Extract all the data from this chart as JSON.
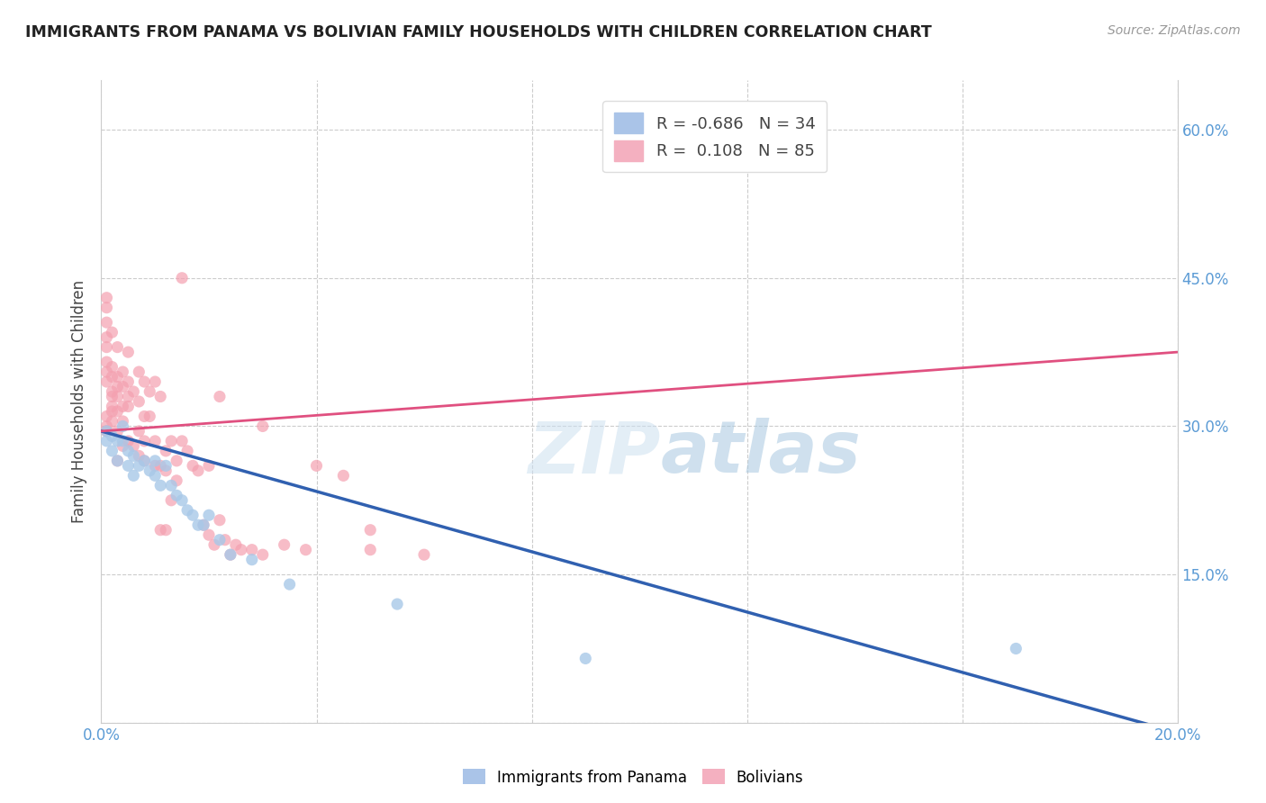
{
  "title": "IMMIGRANTS FROM PANAMA VS BOLIVIAN FAMILY HOUSEHOLDS WITH CHILDREN CORRELATION CHART",
  "source": "Source: ZipAtlas.com",
  "ylabel": "Family Households with Children",
  "xlim": [
    0.0,
    0.2
  ],
  "ylim": [
    0.0,
    0.65
  ],
  "x_ticks": [
    0.0,
    0.04,
    0.08,
    0.12,
    0.16,
    0.2
  ],
  "x_tick_labels": [
    "0.0%",
    "",
    "",
    "",
    "",
    "20.0%"
  ],
  "y_ticks_left": [
    0.0,
    0.15,
    0.3,
    0.45,
    0.6
  ],
  "y_ticks_right": [
    0.15,
    0.3,
    0.45,
    0.6
  ],
  "y_tick_labels_right": [
    "15.0%",
    "30.0%",
    "45.0%",
    "60.0%"
  ],
  "legend_labels_bottom": [
    "Immigrants from Panama",
    "Bolivians"
  ],
  "color_panama": "#a8c8e8",
  "color_bolivia": "#f4a0b0",
  "line_color_panama": "#3060b0",
  "line_color_bolivia": "#e05080",
  "panama_trend": [
    0.0,
    0.2,
    0.295,
    -0.01
  ],
  "bolivia_trend": [
    0.0,
    0.2,
    0.295,
    0.375
  ],
  "panama_scatter": [
    [
      0.001,
      0.295
    ],
    [
      0.001,
      0.285
    ],
    [
      0.002,
      0.29
    ],
    [
      0.002,
      0.275
    ],
    [
      0.003,
      0.285
    ],
    [
      0.003,
      0.265
    ],
    [
      0.004,
      0.3
    ],
    [
      0.004,
      0.285
    ],
    [
      0.005,
      0.275
    ],
    [
      0.005,
      0.26
    ],
    [
      0.006,
      0.27
    ],
    [
      0.006,
      0.25
    ],
    [
      0.007,
      0.26
    ],
    [
      0.008,
      0.265
    ],
    [
      0.009,
      0.255
    ],
    [
      0.01,
      0.265
    ],
    [
      0.01,
      0.25
    ],
    [
      0.011,
      0.24
    ],
    [
      0.012,
      0.26
    ],
    [
      0.013,
      0.24
    ],
    [
      0.014,
      0.23
    ],
    [
      0.015,
      0.225
    ],
    [
      0.016,
      0.215
    ],
    [
      0.017,
      0.21
    ],
    [
      0.018,
      0.2
    ],
    [
      0.019,
      0.2
    ],
    [
      0.02,
      0.21
    ],
    [
      0.022,
      0.185
    ],
    [
      0.024,
      0.17
    ],
    [
      0.028,
      0.165
    ],
    [
      0.035,
      0.14
    ],
    [
      0.055,
      0.12
    ],
    [
      0.09,
      0.065
    ],
    [
      0.17,
      0.075
    ]
  ],
  "bolivia_scatter": [
    [
      0.001,
      0.3
    ],
    [
      0.001,
      0.295
    ],
    [
      0.001,
      0.31
    ],
    [
      0.001,
      0.295
    ],
    [
      0.001,
      0.345
    ],
    [
      0.001,
      0.355
    ],
    [
      0.001,
      0.365
    ],
    [
      0.001,
      0.38
    ],
    [
      0.001,
      0.39
    ],
    [
      0.001,
      0.405
    ],
    [
      0.001,
      0.42
    ],
    [
      0.001,
      0.43
    ],
    [
      0.002,
      0.305
    ],
    [
      0.002,
      0.315
    ],
    [
      0.002,
      0.33
    ],
    [
      0.002,
      0.35
    ],
    [
      0.002,
      0.36
    ],
    [
      0.002,
      0.32
    ],
    [
      0.002,
      0.395
    ],
    [
      0.002,
      0.335
    ],
    [
      0.003,
      0.315
    ],
    [
      0.003,
      0.33
    ],
    [
      0.003,
      0.35
    ],
    [
      0.003,
      0.38
    ],
    [
      0.003,
      0.295
    ],
    [
      0.003,
      0.265
    ],
    [
      0.003,
      0.34
    ],
    [
      0.004,
      0.34
    ],
    [
      0.004,
      0.355
    ],
    [
      0.004,
      0.28
    ],
    [
      0.004,
      0.305
    ],
    [
      0.004,
      0.32
    ],
    [
      0.005,
      0.32
    ],
    [
      0.005,
      0.345
    ],
    [
      0.005,
      0.285
    ],
    [
      0.005,
      0.375
    ],
    [
      0.005,
      0.33
    ],
    [
      0.006,
      0.335
    ],
    [
      0.006,
      0.28
    ],
    [
      0.007,
      0.355
    ],
    [
      0.007,
      0.325
    ],
    [
      0.007,
      0.295
    ],
    [
      0.007,
      0.27
    ],
    [
      0.008,
      0.345
    ],
    [
      0.008,
      0.31
    ],
    [
      0.008,
      0.285
    ],
    [
      0.008,
      0.265
    ],
    [
      0.009,
      0.335
    ],
    [
      0.009,
      0.31
    ],
    [
      0.01,
      0.345
    ],
    [
      0.01,
      0.285
    ],
    [
      0.01,
      0.26
    ],
    [
      0.011,
      0.33
    ],
    [
      0.011,
      0.26
    ],
    [
      0.011,
      0.195
    ],
    [
      0.012,
      0.275
    ],
    [
      0.012,
      0.255
    ],
    [
      0.012,
      0.195
    ],
    [
      0.013,
      0.285
    ],
    [
      0.013,
      0.225
    ],
    [
      0.014,
      0.265
    ],
    [
      0.014,
      0.245
    ],
    [
      0.015,
      0.45
    ],
    [
      0.015,
      0.285
    ],
    [
      0.016,
      0.275
    ],
    [
      0.017,
      0.26
    ],
    [
      0.018,
      0.255
    ],
    [
      0.019,
      0.2
    ],
    [
      0.02,
      0.26
    ],
    [
      0.02,
      0.19
    ],
    [
      0.021,
      0.18
    ],
    [
      0.022,
      0.33
    ],
    [
      0.022,
      0.205
    ],
    [
      0.023,
      0.185
    ],
    [
      0.024,
      0.17
    ],
    [
      0.025,
      0.18
    ],
    [
      0.026,
      0.175
    ],
    [
      0.028,
      0.175
    ],
    [
      0.03,
      0.3
    ],
    [
      0.03,
      0.17
    ],
    [
      0.034,
      0.18
    ],
    [
      0.038,
      0.175
    ],
    [
      0.04,
      0.26
    ],
    [
      0.045,
      0.25
    ],
    [
      0.05,
      0.195
    ],
    [
      0.05,
      0.175
    ],
    [
      0.06,
      0.17
    ]
  ]
}
